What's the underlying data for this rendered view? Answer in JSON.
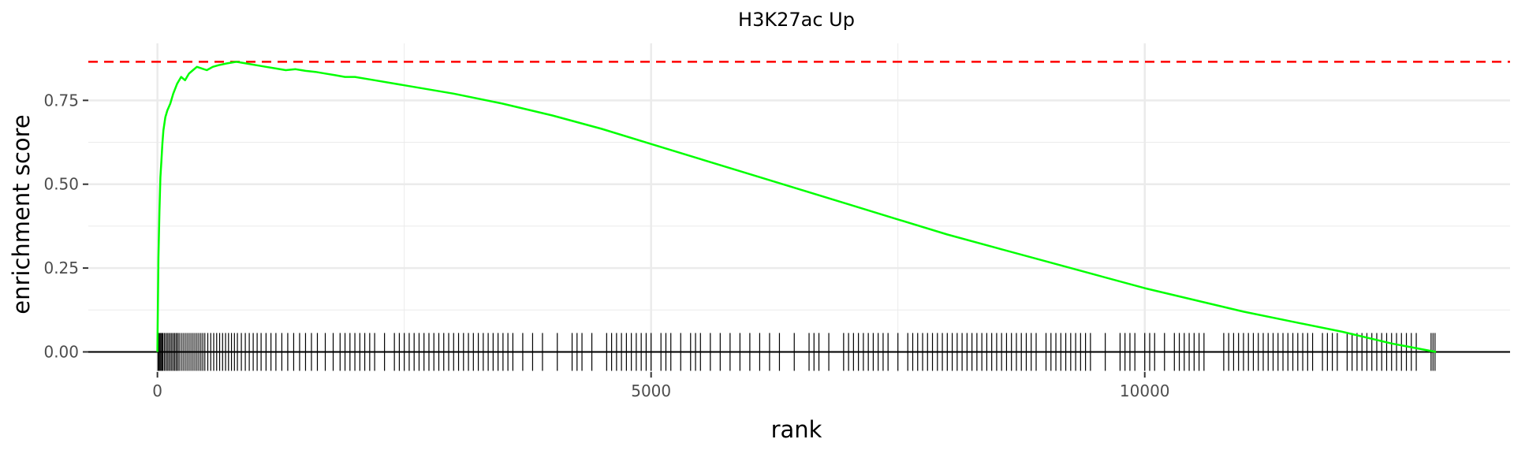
{
  "chart_data": {
    "type": "line",
    "title": "H3K27ac Up",
    "xlabel": "rank",
    "ylabel": "enrichment score",
    "xlim": [
      -700,
      13700
    ],
    "ylim": [
      -0.06,
      0.92
    ],
    "x_ticks": [
      0,
      5000,
      10000
    ],
    "x_tick_labels": [
      "0",
      "5000",
      "10000"
    ],
    "y_ticks": [
      0,
      0.25,
      0.5,
      0.75
    ],
    "y_tick_labels": [
      "0.00",
      "0.25",
      "0.50",
      "0.75"
    ],
    "grid": true,
    "legend": "none",
    "max_score": 0.865,
    "colors": {
      "curve": "#00ff00",
      "max_line": "#ff0000",
      "hits": "#000000",
      "zero_line": "#000000",
      "grid": "#ebebeb"
    },
    "series": [
      {
        "x": [
          0,
          10,
          20,
          30,
          40,
          50,
          60,
          80,
          100,
          130,
          160,
          200,
          240,
          280,
          320,
          360,
          400,
          450,
          500,
          560,
          620,
          700,
          800,
          900,
          1000,
          1100,
          1200,
          1300,
          1400,
          1500,
          1600,
          1700,
          1800,
          1900,
          2000,
          2200,
          2500,
          3000,
          3500,
          4000,
          4500,
          5000,
          5500,
          6000,
          6500,
          7000,
          7500,
          8000,
          8500,
          9000,
          9500,
          10000,
          10500,
          11000,
          11500,
          12000,
          12500,
          12950
        ],
        "y": [
          0.0,
          0.28,
          0.42,
          0.52,
          0.57,
          0.62,
          0.66,
          0.7,
          0.72,
          0.74,
          0.77,
          0.8,
          0.82,
          0.81,
          0.83,
          0.84,
          0.85,
          0.845,
          0.84,
          0.85,
          0.855,
          0.86,
          0.865,
          0.86,
          0.855,
          0.85,
          0.845,
          0.84,
          0.843,
          0.838,
          0.835,
          0.83,
          0.825,
          0.82,
          0.82,
          0.81,
          0.795,
          0.77,
          0.74,
          0.705,
          0.665,
          0.62,
          0.575,
          0.53,
          0.485,
          0.44,
          0.395,
          0.35,
          0.31,
          0.27,
          0.23,
          0.19,
          0.155,
          0.12,
          0.09,
          0.06,
          0.025,
          0.0
        ]
      }
    ],
    "hits": [
      5,
      15,
      25,
      35,
      45,
      55,
      70,
      85,
      100,
      115,
      130,
      145,
      160,
      175,
      190,
      205,
      220,
      240,
      260,
      280,
      300,
      320,
      340,
      360,
      380,
      400,
      420,
      440,
      460,
      480,
      510,
      540,
      570,
      600,
      630,
      660,
      690,
      720,
      750,
      780,
      810,
      850,
      890,
      930,
      970,
      1010,
      1050,
      1100,
      1150,
      1200,
      1260,
      1320,
      1380,
      1440,
      1500,
      1560,
      1620,
      1700,
      1780,
      1850,
      1900,
      1950,
      2000,
      2050,
      2100,
      2150,
      2200,
      2300,
      2400,
      2450,
      2500,
      2550,
      2600,
      2650,
      2700,
      2750,
      2800,
      2850,
      2900,
      2950,
      3000,
      3050,
      3100,
      3150,
      3200,
      3250,
      3300,
      3350,
      3400,
      3450,
      3500,
      3550,
      3600,
      3700,
      3800,
      3900,
      4050,
      4200,
      4250,
      4300,
      4400,
      4550,
      4600,
      4650,
      4700,
      4750,
      4800,
      4850,
      4900,
      4950,
      5000,
      5100,
      5150,
      5200,
      5300,
      5400,
      5450,
      5500,
      5600,
      5700,
      5800,
      5900,
      6000,
      6100,
      6200,
      6300,
      6450,
      6600,
      6650,
      6700,
      6800,
      6950,
      7000,
      7050,
      7100,
      7150,
      7200,
      7250,
      7300,
      7350,
      7400,
      7500,
      7600,
      7650,
      7700,
      7750,
      7800,
      7850,
      7900,
      7950,
      8000,
      8050,
      8100,
      8150,
      8200,
      8250,
      8300,
      8350,
      8400,
      8450,
      8500,
      8550,
      8600,
      8650,
      8700,
      8750,
      8800,
      8850,
      8900,
      9000,
      9050,
      9100,
      9150,
      9200,
      9250,
      9300,
      9350,
      9400,
      9450,
      9600,
      9750,
      9800,
      9850,
      9900,
      10000,
      10050,
      10100,
      10200,
      10300,
      10350,
      10400,
      10450,
      10500,
      10550,
      10600,
      10800,
      10850,
      10900,
      10950,
      11000,
      11050,
      11100,
      11150,
      11200,
      11250,
      11300,
      11350,
      11400,
      11450,
      11500,
      11550,
      11600,
      11650,
      11700,
      11800,
      11850,
      11900,
      11950,
      12050,
      12100,
      12150,
      12200,
      12250,
      12300,
      12350,
      12400,
      12450,
      12500,
      12550,
      12600,
      12650,
      12700,
      12750,
      12900,
      12920,
      12940
    ]
  }
}
